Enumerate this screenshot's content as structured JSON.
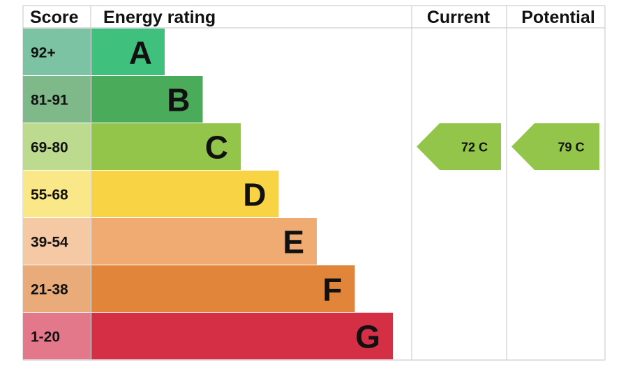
{
  "chart_data": {
    "type": "bar",
    "headers": {
      "score": "Score",
      "rating": "Energy rating",
      "current": "Current",
      "potential": "Potential"
    },
    "bands": [
      {
        "score": "92+",
        "letter": "A",
        "min": 92,
        "max": 100,
        "color": "#3fc07d",
        "score_color": "#7cc3a3"
      },
      {
        "score": "81-91",
        "letter": "B",
        "min": 81,
        "max": 91,
        "color": "#4aab5a",
        "score_color": "#7fb98a"
      },
      {
        "score": "69-80",
        "letter": "C",
        "min": 69,
        "max": 80,
        "color": "#93c54a",
        "score_color": "#bcdb8e"
      },
      {
        "score": "55-68",
        "letter": "D",
        "min": 55,
        "max": 68,
        "color": "#f8d445",
        "score_color": "#fae787"
      },
      {
        "score": "39-54",
        "letter": "E",
        "min": 39,
        "max": 54,
        "color": "#f0ab73",
        "score_color": "#f5c9a4"
      },
      {
        "score": "21-38",
        "letter": "F",
        "min": 21,
        "max": 38,
        "color": "#e0853a",
        "score_color": "#e9ab79"
      },
      {
        "score": "1-20",
        "letter": "G",
        "min": 1,
        "max": 20,
        "color": "#d42f45",
        "score_color": "#e2788a"
      }
    ],
    "current": {
      "value": 72,
      "band": "C",
      "label": "72  C",
      "color": "#93c54a"
    },
    "potential": {
      "value": 79,
      "band": "C",
      "label": "79  C",
      "color": "#93c54a"
    }
  }
}
